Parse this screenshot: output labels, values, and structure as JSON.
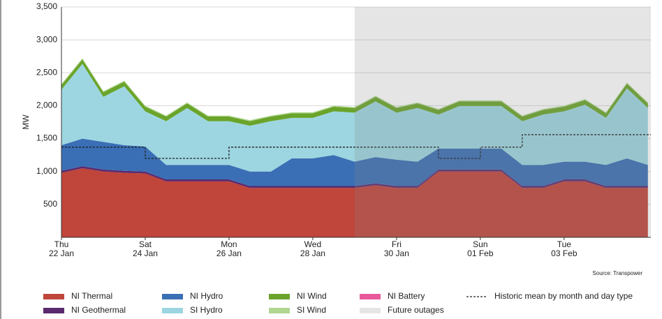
{
  "chart_data": {
    "type": "stacked_area",
    "ylabel": "MW",
    "source": "Source: Transpower",
    "x": [
      0,
      0.5,
      1,
      1.5,
      2,
      2.5,
      3,
      3.5,
      4,
      4.5,
      5,
      5.5,
      6,
      6.5,
      7,
      7.5,
      8,
      8.5,
      9,
      9.5,
      10,
      10.5,
      11,
      11.5,
      12,
      12.5,
      13,
      13.5,
      14
    ],
    "xlim": [
      0,
      14.07
    ],
    "xticks": [
      {
        "value": 0,
        "label": "Thu 22 Jan"
      },
      {
        "value": 2,
        "label": "Sat 24 Jan"
      },
      {
        "value": 4,
        "label": "Mon 26 Jan"
      },
      {
        "value": 6,
        "label": "Wed 28 Jan"
      },
      {
        "value": 8,
        "label": "Fri 30 Jan"
      },
      {
        "value": 10,
        "label": "Sun 01 Feb"
      },
      {
        "value": 12,
        "label": "Tue 03 Feb"
      }
    ],
    "ylim": [
      0,
      3500
    ],
    "yticks": [
      500,
      {
        "value": 1000,
        "label": "1,000"
      },
      {
        "value": 1500,
        "label": "1,500"
      },
      {
        "value": 2000,
        "label": "2,000"
      },
      {
        "value": 2500,
        "label": "2,500"
      },
      {
        "value": 3000,
        "label": "3,000"
      },
      {
        "value": 3500,
        "label": "3,500"
      }
    ],
    "grid": true,
    "series": [
      {
        "name": "NI Thermal",
        "color": "#c0453a",
        "values": [
          980,
          1050,
          1000,
          980,
          970,
          850,
          850,
          850,
          850,
          750,
          750,
          750,
          750,
          750,
          750,
          790,
          750,
          750,
          1000,
          1000,
          1000,
          1000,
          750,
          750,
          850,
          850,
          750,
          750,
          750
        ]
      },
      {
        "name": "NI Geothermal",
        "color": "#5a2a6e",
        "values": [
          30,
          30,
          30,
          30,
          30,
          30,
          30,
          30,
          30,
          30,
          30,
          30,
          30,
          30,
          30,
          30,
          30,
          30,
          30,
          30,
          30,
          30,
          30,
          30,
          30,
          30,
          30,
          30,
          30
        ]
      },
      {
        "name": "NI Hydro",
        "color": "#3a6fb5",
        "values": [
          390,
          420,
          420,
          390,
          380,
          220,
          220,
          220,
          220,
          220,
          220,
          420,
          420,
          470,
          370,
          400,
          400,
          370,
          320,
          320,
          320,
          320,
          320,
          320,
          270,
          270,
          320,
          420,
          320
        ]
      },
      {
        "name": "SI Hydro",
        "color": "#9dd6e0",
        "values": [
          845,
          1135,
          685,
          895,
          535,
          665,
          865,
          665,
          665,
          695,
          765,
          615,
          615,
          665,
          745,
          845,
          715,
          815,
          515,
          645,
          645,
          645,
          665,
          765,
          765,
          865,
          715,
          1065,
          865
        ]
      },
      {
        "name": "NI Wind",
        "color": "#6aa42a",
        "values": [
          70,
          70,
          70,
          70,
          70,
          70,
          70,
          70,
          70,
          70,
          70,
          70,
          70,
          70,
          70,
          70,
          70,
          70,
          70,
          70,
          70,
          70,
          70,
          70,
          70,
          70,
          70,
          70,
          70
        ]
      },
      {
        "name": "SI Wind",
        "color": "#b0d690",
        "values": [
          15,
          15,
          15,
          15,
          15,
          15,
          15,
          15,
          15,
          15,
          15,
          15,
          15,
          15,
          15,
          15,
          15,
          15,
          15,
          15,
          15,
          15,
          15,
          15,
          15,
          15,
          15,
          15,
          15
        ]
      },
      {
        "name": "NI Battery",
        "color": "#e75a9a",
        "values": [
          0,
          0,
          0,
          0,
          0,
          0,
          0,
          0,
          0,
          0,
          0,
          0,
          0,
          0,
          0,
          0,
          0,
          0,
          0,
          0,
          0,
          0,
          0,
          0,
          0,
          0,
          0,
          0,
          0
        ]
      }
    ],
    "historic_mean": {
      "name": "Historic mean by month and day type",
      "color": "#222222",
      "values": [
        1370,
        1370,
        1370,
        1370,
        1200,
        1200,
        1200,
        1200,
        1370,
        1370,
        1370,
        1370,
        1370,
        1370,
        1370,
        1370,
        1370,
        1370,
        1200,
        1200,
        1370,
        1370,
        1560,
        1560,
        1560,
        1560,
        1560,
        1560,
        1560
      ]
    },
    "future_outages": {
      "name": "Future outages",
      "color": "#8a8a8a",
      "start": 7
    }
  }
}
